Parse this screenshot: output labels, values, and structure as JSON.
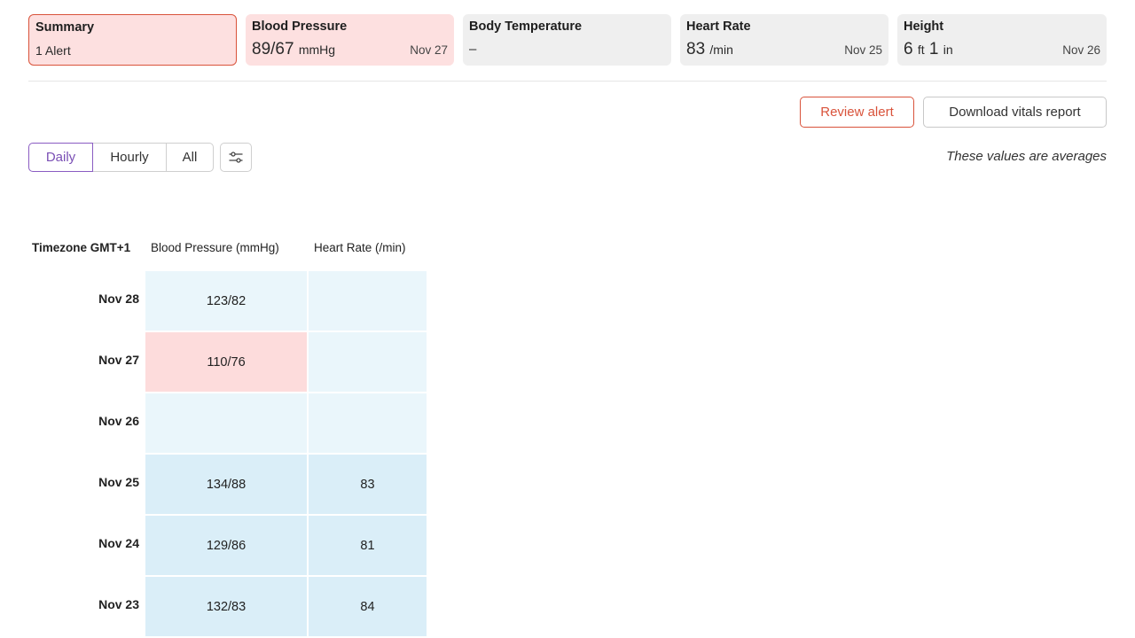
{
  "cards": {
    "summary": {
      "title": "Summary",
      "count": "1",
      "label": "Alert"
    },
    "blood_pressure": {
      "title": "Blood Pressure",
      "value": "89/67",
      "unit": "mmHg",
      "date": "Nov 27"
    },
    "body_temperature": {
      "title": "Body Temperature",
      "value": "–"
    },
    "heart_rate": {
      "title": "Heart Rate",
      "value": "83",
      "unit": "/min",
      "date": "Nov 25"
    },
    "height": {
      "title": "Height",
      "feet": "6",
      "feet_unit": "ft",
      "inches": "1",
      "inches_unit": "in",
      "date": "Nov 26"
    }
  },
  "actions": {
    "review_alert": "Review alert",
    "download_report": "Download vitals report"
  },
  "view_toggle": {
    "options": [
      "Daily",
      "Hourly",
      "All"
    ],
    "selected": "Daily"
  },
  "note": "These values are averages",
  "table": {
    "headers": {
      "timezone": "Timezone GMT+1",
      "blood_pressure": "Blood Pressure (mmHg)",
      "heart_rate": "Heart Rate (/min)"
    },
    "rows": [
      {
        "date": "Nov 28",
        "bp": "123/82",
        "hr": ""
      },
      {
        "date": "Nov 27",
        "bp": "110/76",
        "hr": ""
      },
      {
        "date": "Nov 26",
        "bp": "",
        "hr": ""
      },
      {
        "date": "Nov 25",
        "bp": "134/88",
        "hr": "83"
      },
      {
        "date": "Nov 24",
        "bp": "129/86",
        "hr": "81"
      },
      {
        "date": "Nov 23",
        "bp": "132/83",
        "hr": "84"
      }
    ]
  },
  "colors": {
    "alert": "#d9533b",
    "alert_bg": "#fde0e0",
    "accent": "#7a4fb5",
    "cell_light": "#eaf6fb",
    "cell_medium": "#daeef8"
  },
  "icons": {
    "filter": "filter-sliders-icon"
  }
}
